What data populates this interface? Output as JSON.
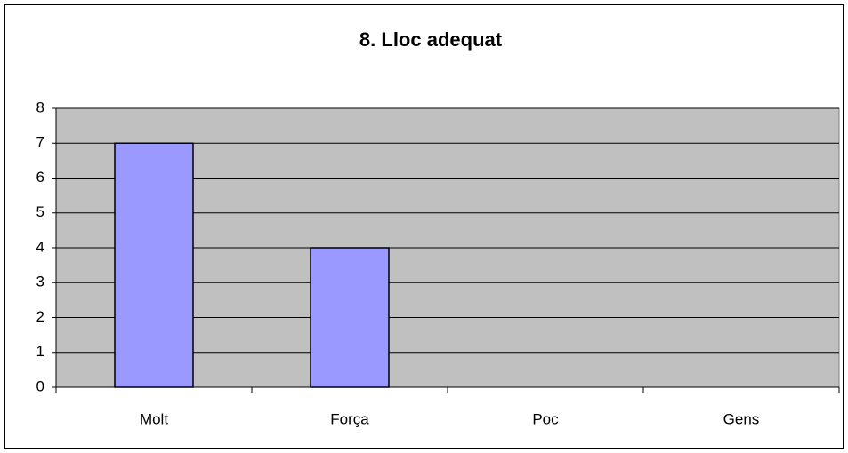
{
  "chart_data": {
    "type": "bar",
    "title": "8. Lloc adequat",
    "categories": [
      "Molt",
      "Força",
      "Poc",
      "Gens"
    ],
    "values": [
      7,
      4,
      0,
      0
    ],
    "color": "#9999ff",
    "ylim": [
      0,
      8
    ],
    "yticks": [
      0,
      1,
      2,
      3,
      4,
      5,
      6,
      7,
      8
    ],
    "grid": true
  }
}
